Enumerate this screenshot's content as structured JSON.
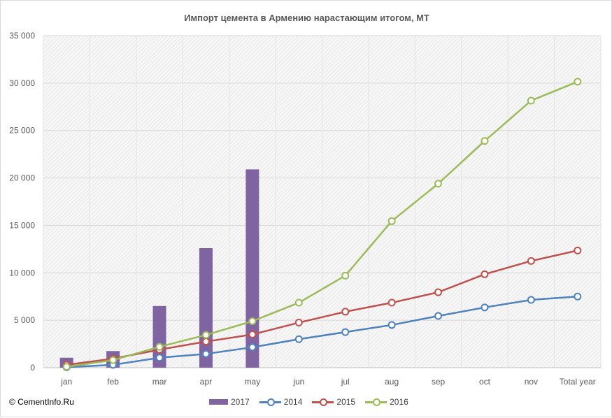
{
  "chart_data": {
    "type": "bar+line",
    "title": "Импорт цемента в Армению нарастающим  итогом, МТ",
    "categories": [
      "jan",
      "feb",
      "mar",
      "apr",
      "may",
      "jun",
      "jul",
      "aug",
      "sep",
      "oct",
      "nov",
      "Total year"
    ],
    "ylim": [
      0,
      35000
    ],
    "y_ticks": [
      0,
      5000,
      10000,
      15000,
      20000,
      25000,
      30000,
      35000
    ],
    "y_tick_labels": [
      "0",
      "5 000",
      "10 000",
      "15 000",
      "20 000",
      "25 000",
      "30 000",
      "35 000"
    ],
    "grid": true,
    "legend_position": "bottom",
    "series": [
      {
        "name": "2017",
        "type": "bar",
        "color": "#8064a2",
        "values": [
          1050,
          1750,
          6500,
          12600,
          20900,
          null,
          null,
          null,
          null,
          null,
          null,
          null
        ]
      },
      {
        "name": "2014",
        "type": "line",
        "color": "#4f81bd",
        "values": [
          50,
          300,
          1050,
          1450,
          2150,
          3000,
          3750,
          4500,
          5450,
          6350,
          7150,
          7500
        ]
      },
      {
        "name": "2015",
        "type": "line",
        "color": "#c0504d",
        "values": [
          300,
          950,
          1900,
          2750,
          3500,
          4750,
          5900,
          6850,
          7950,
          9850,
          11250,
          12350
        ]
      },
      {
        "name": "2016",
        "type": "line",
        "color": "#9bbb59",
        "values": [
          100,
          800,
          2200,
          3450,
          4900,
          6850,
          9700,
          15450,
          19400,
          23900,
          28150,
          30150
        ]
      }
    ]
  },
  "copyright": "© CementInfo.Ru"
}
